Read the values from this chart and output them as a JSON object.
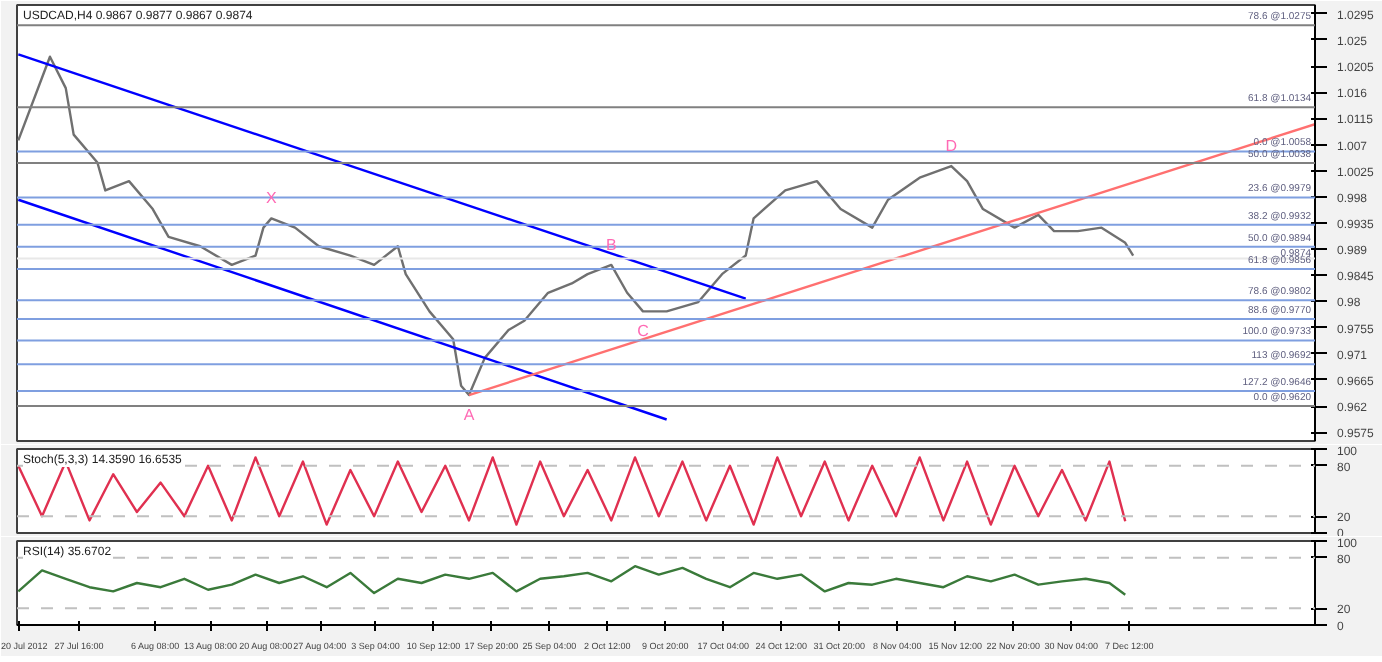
{
  "chart_data": [
    {
      "type": "line",
      "title": "USDCAD,H4 0.9867 0.9877 0.9867 0.9874",
      "tick_labels": "y",
      "xlim": [
        "2012-07-19T20:00",
        "2012-12-31"
      ],
      "ylim": [
        0.956,
        1.031
      ],
      "yticks": [
        1.0295,
        1.025,
        1.0205,
        1.016,
        1.0115,
        1.007,
        1.0025,
        0.998,
        0.9935,
        0.989,
        0.9845,
        0.98,
        0.9755,
        0.971,
        0.9665,
        0.962,
        0.9575
      ],
      "series": [
        {
          "color": "#707070",
          "x": [
            "2012-07-20",
            "2012-07-24",
            "2012-07-26",
            "2012-07-27",
            "2012-07-30",
            "2012-07-31",
            "2012-08-03",
            "2012-08-06",
            "2012-08-08",
            "2012-08-12",
            "2012-08-16",
            "2012-08-19",
            "2012-08-20",
            "2012-08-21",
            "2012-08-24",
            "2012-08-27",
            "2012-08-31",
            "2012-09-03",
            "2012-09-06",
            "2012-09-07",
            "2012-09-10",
            "2012-09-13",
            "2012-09-14",
            "2012-09-15",
            "2012-09-17",
            "2012-09-20",
            "2012-09-22",
            "2012-09-25",
            "2012-09-28",
            "2012-09-30",
            "2012-10-03",
            "2012-10-05",
            "2012-10-07",
            "2012-10-10",
            "2012-10-14",
            "2012-10-17",
            "2012-10-20",
            "2012-10-21",
            "2012-10-25",
            "2012-10-29",
            "2012-11-01",
            "2012-11-05",
            "2012-11-07",
            "2012-11-11",
            "2012-11-15",
            "2012-11-17",
            "2012-11-19",
            "2012-11-23",
            "2012-11-26",
            "2012-11-28",
            "2012-12-01",
            "2012-12-04",
            "2012-12-07",
            "2012-12-08"
          ],
          "values": [
            1.0077,
            1.0221,
            1.0167,
            1.0087,
            1.0039,
            0.9991,
            1.0007,
            0.9959,
            0.9911,
            0.9895,
            0.9863,
            0.9879,
            0.9927,
            0.9943,
            0.9927,
            0.9895,
            0.9879,
            0.9863,
            0.9895,
            0.9847,
            0.9783,
            0.9735,
            0.9655,
            0.9639,
            0.9703,
            0.9751,
            0.9767,
            0.9815,
            0.9831,
            0.9847,
            0.9863,
            0.9815,
            0.9783,
            0.9783,
            0.9799,
            0.9847,
            0.9879,
            0.9943,
            0.9991,
            1.0007,
            0.9959,
            0.9927,
            0.9975,
            1.0013,
            1.0033,
            1.0007,
            0.9959,
            0.9927,
            0.9949,
            0.9921,
            0.9921,
            0.9927,
            0.9901,
            0.9879
          ]
        },
        {
          "color": "#0000ff",
          "x": [
            "2012-07-20",
            "2012-10-20"
          ],
          "values": [
            1.0225,
            0.9805
          ]
        },
        {
          "color": "#0000ff",
          "x": [
            "2012-07-20",
            "2012-10-10"
          ],
          "values": [
            0.9975,
            0.9597
          ]
        },
        {
          "color": "#ff7070",
          "x": [
            "2012-09-15",
            "2012-12-31"
          ],
          "values": [
            0.9639,
            1.0105
          ]
        }
      ],
      "ref_lines": [
        {
          "axis": "y",
          "value": 1.0275,
          "label": "78.6 @1.0275",
          "color": "#808080"
        },
        {
          "axis": "y",
          "value": 1.0134,
          "label": "61.8 @1.0134",
          "color": "#808080"
        },
        {
          "axis": "y",
          "value": 1.0058,
          "label": "0.0 @1.0058",
          "color": "#7f9fe0"
        },
        {
          "axis": "y",
          "value": 1.0038,
          "label": "50.0 @1.0038",
          "color": "#808080"
        },
        {
          "axis": "y",
          "value": 0.9979,
          "label": "23.6 @0.9979",
          "color": "#7f9fe0"
        },
        {
          "axis": "y",
          "value": 0.9932,
          "label": "38.2 @0.9932",
          "color": "#7f9fe0"
        },
        {
          "axis": "y",
          "value": 0.9894,
          "label": "50.0 @0.9894",
          "color": "#7f9fe0"
        },
        {
          "axis": "y",
          "value": 0.9874,
          "label": "0.9874",
          "color": "#e8e8e8"
        },
        {
          "axis": "y",
          "value": 0.9856,
          "label": "61.8 @0.9856",
          "color": "#7f9fe0"
        },
        {
          "axis": "y",
          "value": 0.9802,
          "label": "78.6 @0.9802",
          "color": "#7f9fe0"
        },
        {
          "axis": "y",
          "value": 0.977,
          "label": "88.6 @0.9770",
          "color": "#7f9fe0"
        },
        {
          "axis": "y",
          "value": 0.9733,
          "label": "100.0 @0.9733",
          "color": "#7f9fe0"
        },
        {
          "axis": "y",
          "value": 0.9692,
          "label": "113 @0.9692",
          "color": "#7f9fe0"
        },
        {
          "axis": "y",
          "value": 0.9646,
          "label": "127.2 @0.9646",
          "color": "#7f9fe0"
        },
        {
          "axis": "y",
          "value": 0.962,
          "label": "0.0 @0.9620",
          "color": "#808080"
        }
      ],
      "annotations": [
        {
          "text": "X",
          "x": "2012-08-21",
          "y": 0.9943
        },
        {
          "text": "A",
          "x": "2012-09-15",
          "y": 0.9639
        },
        {
          "text": "B",
          "x": "2012-10-03",
          "y": 0.9863
        },
        {
          "text": "C",
          "x": "2012-10-07",
          "y": 0.9783
        },
        {
          "text": "D",
          "x": "2012-11-15",
          "y": 1.0033
        }
      ]
    },
    {
      "type": "line",
      "title": "Stoch(5,3,3) 14.3590 16.6535",
      "tick_labels": "y",
      "xlim": [
        "2012-07-19T20:00",
        "2012-12-31"
      ],
      "ylim": [
        0,
        100
      ],
      "yticks": [
        100,
        80,
        20,
        0
      ],
      "series": [
        {
          "color": "#e03050",
          "x": [
            "2012-07-20",
            "2012-07-23",
            "2012-07-26",
            "2012-07-29",
            "2012-08-01",
            "2012-08-04",
            "2012-08-07",
            "2012-08-10",
            "2012-08-13",
            "2012-08-16",
            "2012-08-19",
            "2012-08-22",
            "2012-08-25",
            "2012-08-28",
            "2012-08-31",
            "2012-09-03",
            "2012-09-06",
            "2012-09-09",
            "2012-09-12",
            "2012-09-15",
            "2012-09-18",
            "2012-09-21",
            "2012-09-24",
            "2012-09-27",
            "2012-09-30",
            "2012-10-03",
            "2012-10-06",
            "2012-10-09",
            "2012-10-12",
            "2012-10-15",
            "2012-10-18",
            "2012-10-21",
            "2012-10-24",
            "2012-10-27",
            "2012-10-30",
            "2012-11-02",
            "2012-11-05",
            "2012-11-08",
            "2012-11-11",
            "2012-11-14",
            "2012-11-17",
            "2012-11-20",
            "2012-11-23",
            "2012-11-26",
            "2012-11-29",
            "2012-12-02",
            "2012-12-05",
            "2012-12-07"
          ],
          "values": [
            80,
            20,
            85,
            15,
            70,
            25,
            60,
            20,
            80,
            15,
            90,
            20,
            85,
            10,
            75,
            20,
            85,
            25,
            80,
            15,
            90,
            10,
            85,
            20,
            75,
            15,
            90,
            20,
            85,
            15,
            80,
            10,
            90,
            20,
            85,
            15,
            80,
            20,
            90,
            15,
            85,
            10,
            80,
            20,
            75,
            15,
            85,
            14
          ]
        }
      ],
      "ref_lines": [
        {
          "axis": "y",
          "value": 80,
          "color": "#c0c0c0",
          "line_style": "dashed"
        },
        {
          "axis": "y",
          "value": 20,
          "color": "#c0c0c0",
          "line_style": "dashed"
        }
      ]
    },
    {
      "type": "line",
      "title": "RSI(14) 35.6702",
      "xlim": [
        "2012-07-19T20:00",
        "2012-12-31"
      ],
      "ylim": [
        0,
        100
      ],
      "yticks": [
        100,
        80,
        20,
        0
      ],
      "xticks": [
        {
          "value": "2012-07-20T00:00",
          "label": "20 Jul 2012"
        },
        {
          "value": "2012-07-27T16:00",
          "label": "27 Jul 16:00"
        },
        {
          "value": "2012-08-06T08:00",
          "label": "6 Aug 08:00"
        },
        {
          "value": "2012-08-13T08:00",
          "label": "13 Aug 08:00"
        },
        {
          "value": "2012-08-20T08:00",
          "label": "20 Aug 08:00"
        },
        {
          "value": "2012-08-27T04:00",
          "label": "27 Aug 04:00"
        },
        {
          "value": "2012-09-03T04:00",
          "label": "3 Sep 04:00"
        },
        {
          "value": "2012-09-10T12:00",
          "label": "10 Sep 12:00"
        },
        {
          "value": "2012-09-17T20:00",
          "label": "17 Sep 20:00"
        },
        {
          "value": "2012-09-25T04:00",
          "label": "25 Sep 04:00"
        },
        {
          "value": "2012-10-02T12:00",
          "label": "2 Oct 12:00"
        },
        {
          "value": "2012-10-09T20:00",
          "label": "9 Oct 20:00"
        },
        {
          "value": "2012-10-17T04:00",
          "label": "17 Oct 04:00"
        },
        {
          "value": "2012-10-24T12:00",
          "label": "24 Oct 12:00"
        },
        {
          "value": "2012-10-31T20:00",
          "label": "31 Oct 20:00"
        },
        {
          "value": "2012-11-08T04:00",
          "label": "8 Nov 04:00"
        },
        {
          "value": "2012-11-15T12:00",
          "label": "15 Nov 12:00"
        },
        {
          "value": "2012-11-22T20:00",
          "label": "22 Nov 20:00"
        },
        {
          "value": "2012-11-30T04:00",
          "label": "30 Nov 04:00"
        },
        {
          "value": "2012-12-07T12:00",
          "label": "7 Dec 12:00"
        }
      ],
      "series": [
        {
          "color": "#3a7a3a",
          "x": [
            "2012-07-20",
            "2012-07-23",
            "2012-07-26",
            "2012-07-29",
            "2012-08-01",
            "2012-08-04",
            "2012-08-07",
            "2012-08-10",
            "2012-08-13",
            "2012-08-16",
            "2012-08-19",
            "2012-08-22",
            "2012-08-25",
            "2012-08-28",
            "2012-08-31",
            "2012-09-03",
            "2012-09-06",
            "2012-09-09",
            "2012-09-12",
            "2012-09-15",
            "2012-09-18",
            "2012-09-21",
            "2012-09-24",
            "2012-09-27",
            "2012-09-30",
            "2012-10-03",
            "2012-10-06",
            "2012-10-09",
            "2012-10-12",
            "2012-10-15",
            "2012-10-18",
            "2012-10-21",
            "2012-10-24",
            "2012-10-27",
            "2012-10-30",
            "2012-11-02",
            "2012-11-05",
            "2012-11-08",
            "2012-11-11",
            "2012-11-14",
            "2012-11-17",
            "2012-11-20",
            "2012-11-23",
            "2012-11-26",
            "2012-11-29",
            "2012-12-02",
            "2012-12-05",
            "2012-12-07"
          ],
          "values": [
            40,
            65,
            55,
            45,
            40,
            50,
            45,
            55,
            42,
            48,
            60,
            50,
            58,
            45,
            62,
            38,
            55,
            50,
            60,
            55,
            62,
            40,
            55,
            58,
            62,
            52,
            70,
            60,
            68,
            55,
            45,
            62,
            55,
            60,
            40,
            50,
            48,
            55,
            50,
            45,
            58,
            52,
            60,
            48,
            52,
            55,
            50,
            36
          ]
        }
      ],
      "ref_lines": [
        {
          "axis": "y",
          "value": 80,
          "color": "#c0c0c0",
          "line_style": "dashed"
        },
        {
          "axis": "y",
          "value": 20,
          "color": "#c0c0c0",
          "line_style": "dashed"
        }
      ]
    }
  ]
}
